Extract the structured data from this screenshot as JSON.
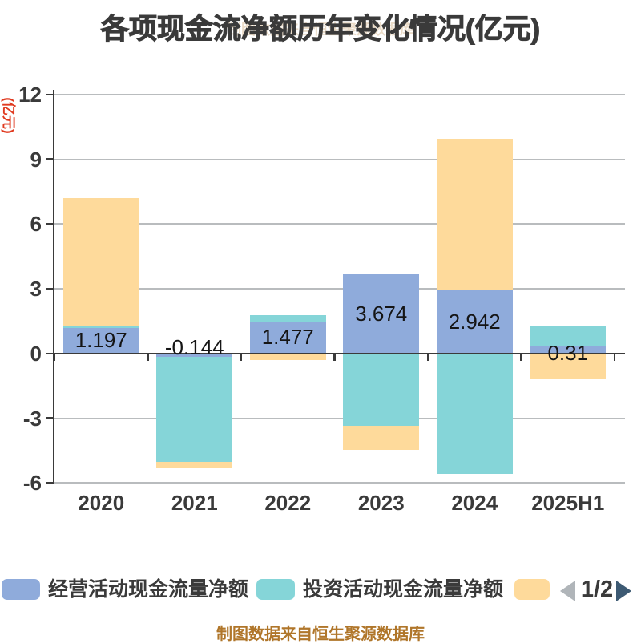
{
  "title": "各项现金流净额历年变化情况(亿元)",
  "watermark_top": "制图数据来自恒生聚源数据库",
  "watermark_bottom": "制图数据来自恒生聚源数据库",
  "y_axis_label": "(亿元)",
  "colors": {
    "operating": "#8FABDB",
    "investing": "#85D5D8",
    "financing": "#FEDA9B",
    "grid": "#b9bcbe",
    "axis": "#3a3a3a",
    "axis_label_red": "#e03a20",
    "watermark": "#b0762a",
    "bar_label": "#151515",
    "pager_left_arrow": "#b0b5b9",
    "pager_right_arrow": "#3d5a73"
  },
  "chart_data": {
    "type": "bar",
    "stacked": true,
    "categories": [
      "2020",
      "2021",
      "2022",
      "2023",
      "2024",
      "2025H1"
    ],
    "series": [
      {
        "name": "经营活动现金流量净额",
        "color_key": "operating",
        "values": [
          1.197,
          -0.144,
          1.477,
          3.674,
          2.942,
          0.31
        ]
      },
      {
        "name": "投资活动现金流量净额",
        "color_key": "investing",
        "values": [
          0.08,
          -4.89,
          0.3,
          -3.35,
          -5.59,
          0.93
        ]
      },
      {
        "name": "",
        "color_key": "financing",
        "values": [
          5.93,
          -0.27,
          -0.3,
          -1.12,
          7.03,
          -1.2
        ]
      }
    ],
    "bar_labels": [
      "1.197",
      "-0.144",
      "1.477",
      "3.674",
      "2.942",
      "0.31"
    ],
    "title": "各项现金流净额历年变化情况(亿元)",
    "ylabel": "(亿元)",
    "ylim": [
      -6,
      12
    ],
    "yticks": [
      12,
      9,
      6,
      3,
      0,
      -3,
      -6
    ],
    "grid": true,
    "legend_position": "bottom"
  },
  "legend": {
    "items": [
      {
        "label": "经营活动现金流量净额",
        "color_key": "operating"
      },
      {
        "label": "投资活动现金流量净额",
        "color_key": "investing"
      },
      {
        "label": "",
        "color_key": "financing"
      }
    ],
    "pager": {
      "current": "1/2"
    }
  }
}
